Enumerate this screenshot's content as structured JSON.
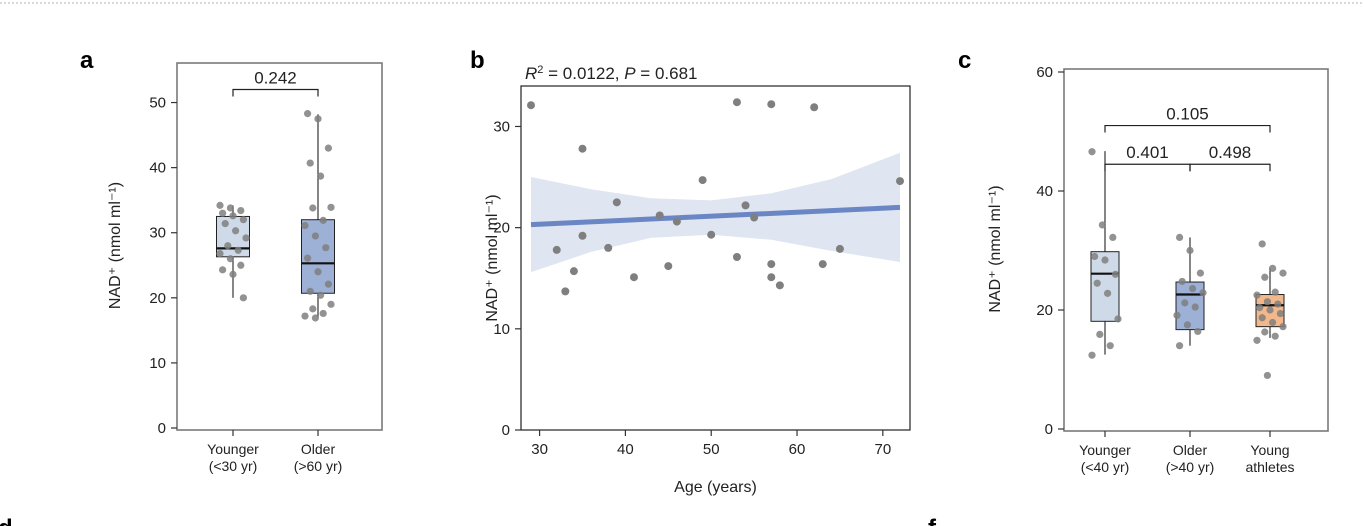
{
  "colors": {
    "younger": "#cfdae9",
    "older": "#9db1d6",
    "athletes": "#f2b88c",
    "points": "#7f7f7f",
    "fit_line": "#6a86c4",
    "confidence_band": "#dfe5f1",
    "page_top_border": "#b3b3b3"
  },
  "chart_data": [
    {
      "panel_label": "a",
      "type": "box",
      "ylabel": "NAD⁺ (nmol ml⁻¹)",
      "ylim": [
        0,
        55
      ],
      "yticks": [
        0,
        10,
        20,
        30,
        40,
        50
      ],
      "categories": [
        {
          "line1": "Younger",
          "line2": "(<30 yr)",
          "color_key": "younger"
        },
        {
          "line1": "Older",
          "line2": "(>60 yr)",
          "color_key": "older"
        }
      ],
      "boxes": [
        {
          "q1": 26.3,
          "median": 27.6,
          "q3": 32.5,
          "whisker_low": 20,
          "whisker_high": 34.2
        },
        {
          "q1": 20.7,
          "median": 25.3,
          "q3": 32.0,
          "whisker_low": 17,
          "whisker_high": 48.2
        }
      ],
      "points": [
        [
          34.2,
          33.8,
          33.4,
          33.0,
          32.6,
          32.0,
          31.4,
          30.3,
          29.2,
          28.0,
          27.3,
          26.8,
          26.0,
          25.0,
          24.3,
          23.6,
          20.0
        ],
        [
          48.3,
          47.5,
          43.0,
          40.7,
          38.7,
          33.9,
          33.8,
          31.9,
          31.1,
          29.5,
          27.7,
          26.1,
          24.0,
          22.1,
          21.0,
          20.4,
          19.0,
          18.3,
          17.6,
          17.2,
          16.9
        ]
      ],
      "brackets": [
        {
          "from": 0,
          "to": 1,
          "label": "0.242",
          "y": 52
        }
      ]
    },
    {
      "panel_label": "b",
      "type": "scatter",
      "annotation": {
        "r_symbol": "R",
        "r_exponent": "2",
        "r_value": " = 0.0122, ",
        "p_symbol": "P",
        "p_value": " = 0.681"
      },
      "xlabel": "Age (years)",
      "ylabel": "NAD⁺ (nmol ml⁻¹)",
      "xlim": [
        27,
        73
      ],
      "ylim": [
        0,
        34
      ],
      "xticks": [
        30,
        40,
        50,
        60,
        70
      ],
      "yticks": [
        0,
        10,
        20,
        30
      ],
      "points": [
        {
          "x": 29,
          "y": 32.1
        },
        {
          "x": 32,
          "y": 17.8
        },
        {
          "x": 33,
          "y": 13.7
        },
        {
          "x": 34,
          "y": 15.7
        },
        {
          "x": 35,
          "y": 27.8
        },
        {
          "x": 35,
          "y": 19.2
        },
        {
          "x": 38,
          "y": 18.0
        },
        {
          "x": 39,
          "y": 22.5
        },
        {
          "x": 41,
          "y": 15.1
        },
        {
          "x": 44,
          "y": 21.2
        },
        {
          "x": 45,
          "y": 16.2
        },
        {
          "x": 46,
          "y": 20.6
        },
        {
          "x": 49,
          "y": 24.7
        },
        {
          "x": 50,
          "y": 19.3
        },
        {
          "x": 53,
          "y": 32.4
        },
        {
          "x": 53,
          "y": 17.1
        },
        {
          "x": 54,
          "y": 22.2
        },
        {
          "x": 55,
          "y": 21.0
        },
        {
          "x": 57,
          "y": 32.2
        },
        {
          "x": 57,
          "y": 16.4
        },
        {
          "x": 57,
          "y": 15.1
        },
        {
          "x": 58,
          "y": 14.3
        },
        {
          "x": 62,
          "y": 31.9
        },
        {
          "x": 63,
          "y": 16.4
        },
        {
          "x": 65,
          "y": 17.9
        },
        {
          "x": 72,
          "y": 24.6
        }
      ],
      "fit": {
        "x": [
          29,
          72
        ],
        "y": [
          20.3,
          22.0
        ]
      },
      "band": {
        "x": [
          29,
          36,
          43,
          50,
          57,
          64,
          72
        ],
        "upper": [
          25.0,
          23.8,
          22.9,
          22.7,
          23.4,
          24.8,
          27.4
        ],
        "lower": [
          15.6,
          17.6,
          19.0,
          19.3,
          18.8,
          17.7,
          16.6
        ]
      }
    },
    {
      "panel_label": "c",
      "type": "box",
      "ylabel": "NAD⁺ (nmol ml⁻¹)",
      "ylim": [
        0,
        60
      ],
      "yticks": [
        0,
        20,
        40,
        60
      ],
      "categories": [
        {
          "line1": "Younger",
          "line2": "(<40 yr)",
          "color_key": "younger"
        },
        {
          "line1": "Older",
          "line2": "(>40 yr)",
          "color_key": "older"
        },
        {
          "line1": "Young",
          "line2": "athletes",
          "color_key": "athletes"
        }
      ],
      "boxes": [
        {
          "q1": 18.1,
          "median": 26.1,
          "q3": 29.8,
          "whisker_low": 12.5,
          "whisker_high": 46.7
        },
        {
          "q1": 16.7,
          "median": 22.6,
          "q3": 24.7,
          "whisker_low": 14,
          "whisker_high": 32.2
        },
        {
          "q1": 17.2,
          "median": 20.8,
          "q3": 22.6,
          "whisker_low": 15.3,
          "whisker_high": 27.0
        }
      ],
      "points": [
        [
          46.6,
          34.3,
          32.2,
          29.0,
          28.4,
          26.0,
          24.5,
          22.8,
          18.5,
          15.9,
          14.0,
          12.4
        ],
        [
          32.2,
          30.0,
          26.2,
          24.8,
          23.6,
          22.9,
          21.2,
          20.5,
          19.1,
          17.5,
          16.4,
          14.0
        ],
        [
          31.1,
          27.0,
          26.2,
          25.5,
          23.0,
          22.5,
          21.4,
          21.0,
          20.4,
          20.0,
          19.4,
          18.7,
          17.9,
          17.2,
          16.3,
          15.6,
          14.9,
          9.0
        ]
      ],
      "brackets": [
        {
          "from": 0,
          "to": 2,
          "label": "0.105",
          "y": 51
        },
        {
          "from": 0,
          "to": 1,
          "label": "0.401",
          "y": 44.5
        },
        {
          "from": 1,
          "to": 2,
          "label": "0.498",
          "y": 44.5
        }
      ]
    }
  ],
  "partial_panel_labels": [
    "d",
    "f"
  ]
}
